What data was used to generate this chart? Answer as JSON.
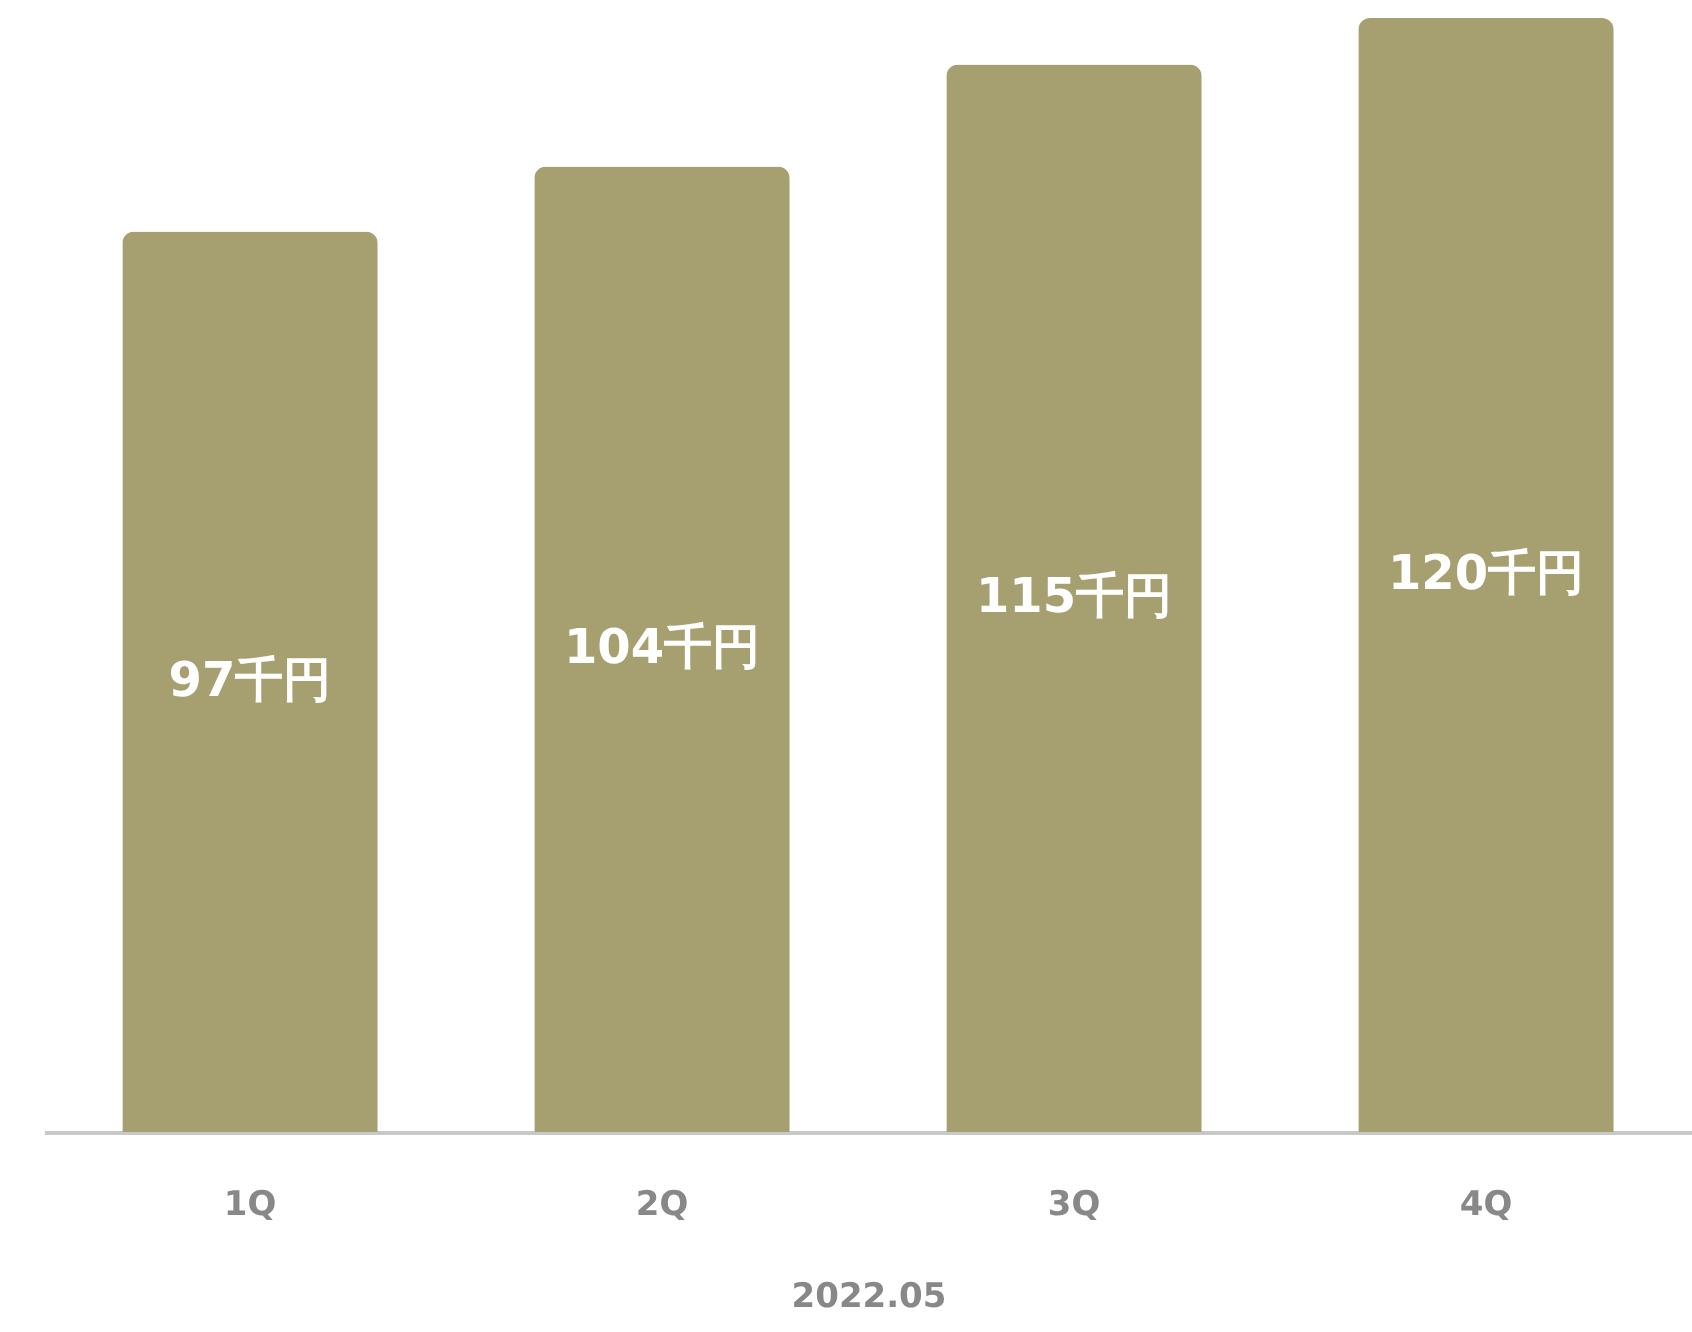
{
  "chart_data": {
    "type": "bar",
    "xlabel": "2022.05",
    "categories": [
      "1Q",
      "2Q",
      "3Q",
      "4Q"
    ],
    "values": [
      97,
      104,
      115,
      120
    ],
    "value_labels": [
      "97千円",
      "104千円",
      "115千円",
      "120千円"
    ],
    "color": "#a69f70",
    "ylim": [
      0,
      120
    ],
    "tick_labels": "x"
  }
}
